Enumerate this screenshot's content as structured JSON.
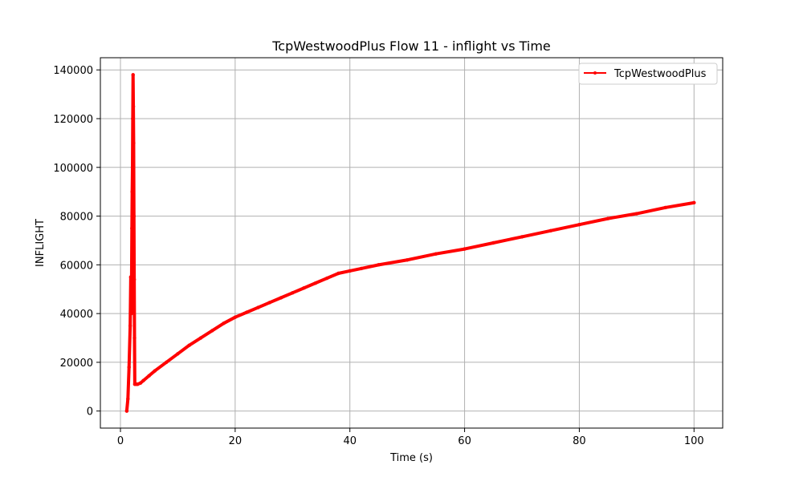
{
  "chart_data": {
    "type": "line",
    "title": "TcpWestwoodPlus Flow 11 - inflight vs Time",
    "xlabel": "Time (s)",
    "ylabel": "INFLIGHT",
    "xlim": [
      -3.5,
      105
    ],
    "ylim": [
      -7000,
      145000
    ],
    "xticks": [
      0,
      20,
      40,
      60,
      80,
      100
    ],
    "yticks": [
      0,
      20000,
      40000,
      60000,
      80000,
      100000,
      120000,
      140000
    ],
    "xtick_labels": [
      "0",
      "20",
      "40",
      "60",
      "80",
      "100"
    ],
    "ytick_labels": [
      "0",
      "20000",
      "40000",
      "60000",
      "80000",
      "100000",
      "120000",
      "140000"
    ],
    "grid": true,
    "legend_position": "top-right",
    "colors": {
      "series": "#ff0000",
      "grid": "#b0b0b0",
      "axes": "#000000"
    },
    "series": [
      {
        "name": "TcpWestwoodPlus",
        "x": [
          1.1,
          1.3,
          1.5,
          1.7,
          1.8,
          1.9,
          2.0,
          2.05,
          2.1,
          2.15,
          2.2,
          2.25,
          2.3,
          2.35,
          2.4,
          2.45,
          2.5,
          2.6,
          2.7,
          2.8,
          3.0,
          3.5,
          4,
          5,
          6,
          8,
          10,
          12,
          14,
          16,
          18,
          20,
          22,
          24,
          26,
          28,
          30,
          32,
          34,
          36,
          38,
          40,
          42,
          45,
          50,
          55,
          60,
          65,
          70,
          75,
          80,
          85,
          90,
          95,
          100
        ],
        "y": [
          0,
          5000,
          18000,
          35000,
          55000,
          40000,
          75000,
          90000,
          100000,
          120000,
          138000,
          125000,
          110000,
          80000,
          54000,
          30000,
          11000,
          11000,
          11000,
          11000,
          11000,
          11500,
          12500,
          14500,
          16500,
          20000,
          23500,
          27000,
          30000,
          33000,
          36000,
          38500,
          40500,
          42500,
          44500,
          46500,
          48500,
          50500,
          52500,
          54500,
          56500,
          57500,
          58500,
          60000,
          62000,
          64500,
          66500,
          69000,
          71500,
          74000,
          76500,
          79000,
          81000,
          83500,
          85500
        ]
      }
    ]
  }
}
